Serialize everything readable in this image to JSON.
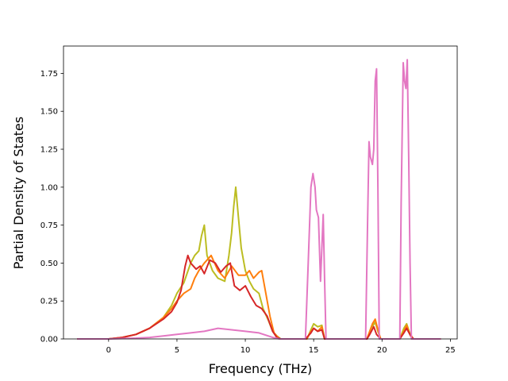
{
  "chart_data": {
    "type": "line",
    "xlabel": "Frequency (THz)",
    "ylabel": "Partial Density of States",
    "xlim": [
      -3.3,
      25.5
    ],
    "ylim": [
      0.0,
      1.93
    ],
    "x_ticks": [
      0,
      5,
      10,
      15,
      20,
      25
    ],
    "y_ticks": [
      0.0,
      0.25,
      0.5,
      0.75,
      1.0,
      1.25,
      1.5,
      1.75
    ],
    "x_tick_labels": [
      "0",
      "5",
      "10",
      "15",
      "20",
      "25"
    ],
    "y_tick_labels": [
      "0.00",
      "0.25",
      "0.50",
      "0.75",
      "1.00",
      "1.25",
      "1.50",
      "1.75"
    ],
    "grid": false,
    "legend": "none",
    "series": [
      {
        "color": "#bcbd22",
        "points": [
          [
            -2.3,
            0
          ],
          [
            0,
            0
          ],
          [
            1,
            0.01
          ],
          [
            2,
            0.03
          ],
          [
            3,
            0.07
          ],
          [
            4,
            0.14
          ],
          [
            4.6,
            0.22
          ],
          [
            5,
            0.3
          ],
          [
            5.5,
            0.37
          ],
          [
            6,
            0.5
          ],
          [
            6.3,
            0.55
          ],
          [
            6.6,
            0.58
          ],
          [
            6.8,
            0.68
          ],
          [
            7.0,
            0.75
          ],
          [
            7.2,
            0.55
          ],
          [
            7.6,
            0.45
          ],
          [
            8,
            0.4
          ],
          [
            8.5,
            0.38
          ],
          [
            8.8,
            0.55
          ],
          [
            9.0,
            0.7
          ],
          [
            9.15,
            0.87
          ],
          [
            9.3,
            1.0
          ],
          [
            9.5,
            0.8
          ],
          [
            9.7,
            0.6
          ],
          [
            10,
            0.45
          ],
          [
            10.3,
            0.38
          ],
          [
            10.6,
            0.33
          ],
          [
            11,
            0.3
          ],
          [
            11.3,
            0.2
          ],
          [
            11.7,
            0.12
          ],
          [
            12,
            0.05
          ],
          [
            12.3,
            0.02
          ],
          [
            12.6,
            0.0
          ],
          [
            14.5,
            0.0
          ],
          [
            14.8,
            0.06
          ],
          [
            15.0,
            0.1
          ],
          [
            15.3,
            0.08
          ],
          [
            15.6,
            0.09
          ],
          [
            15.8,
            0.0
          ],
          [
            18.9,
            0.0
          ],
          [
            19.2,
            0.07
          ],
          [
            19.5,
            0.11
          ],
          [
            19.7,
            0.05
          ],
          [
            19.9,
            0.0
          ],
          [
            21.3,
            0.0
          ],
          [
            21.6,
            0.07
          ],
          [
            21.8,
            0.1
          ],
          [
            22.1,
            0.02
          ],
          [
            22.3,
            0.0
          ],
          [
            24.3,
            0.0
          ]
        ]
      },
      {
        "color": "#ff7f0e",
        "points": [
          [
            -2.3,
            0
          ],
          [
            0,
            0
          ],
          [
            1,
            0.01
          ],
          [
            2,
            0.03
          ],
          [
            3,
            0.07
          ],
          [
            4,
            0.14
          ],
          [
            4.6,
            0.2
          ],
          [
            5,
            0.25
          ],
          [
            5.5,
            0.3
          ],
          [
            6,
            0.33
          ],
          [
            6.3,
            0.4
          ],
          [
            6.6,
            0.45
          ],
          [
            7,
            0.5
          ],
          [
            7.5,
            0.55
          ],
          [
            8,
            0.45
          ],
          [
            8.5,
            0.4
          ],
          [
            9,
            0.48
          ],
          [
            9.5,
            0.42
          ],
          [
            10,
            0.42
          ],
          [
            10.3,
            0.45
          ],
          [
            10.6,
            0.4
          ],
          [
            11,
            0.44
          ],
          [
            11.2,
            0.45
          ],
          [
            11.5,
            0.3
          ],
          [
            11.8,
            0.15
          ],
          [
            12.1,
            0.04
          ],
          [
            12.5,
            0.0
          ],
          [
            14.5,
            0.0
          ],
          [
            14.8,
            0.05
          ],
          [
            15.0,
            0.07
          ],
          [
            15.3,
            0.05
          ],
          [
            15.6,
            0.08
          ],
          [
            15.8,
            0.0
          ],
          [
            18.9,
            0.0
          ],
          [
            19.1,
            0.05
          ],
          [
            19.3,
            0.1
          ],
          [
            19.5,
            0.13
          ],
          [
            19.7,
            0.06
          ],
          [
            19.9,
            0.0
          ],
          [
            21.3,
            0.0
          ],
          [
            21.6,
            0.05
          ],
          [
            21.8,
            0.09
          ],
          [
            22.0,
            0.04
          ],
          [
            22.3,
            0.0
          ],
          [
            24.3,
            0.0
          ]
        ]
      },
      {
        "color": "#d62728",
        "points": [
          [
            -2.3,
            0
          ],
          [
            0,
            0
          ],
          [
            1,
            0.01
          ],
          [
            2,
            0.03
          ],
          [
            3,
            0.07
          ],
          [
            4,
            0.13
          ],
          [
            4.6,
            0.18
          ],
          [
            5,
            0.24
          ],
          [
            5.3,
            0.32
          ],
          [
            5.6,
            0.48
          ],
          [
            5.8,
            0.55
          ],
          [
            6,
            0.5
          ],
          [
            6.4,
            0.46
          ],
          [
            6.7,
            0.48
          ],
          [
            7,
            0.43
          ],
          [
            7.4,
            0.52
          ],
          [
            7.8,
            0.5
          ],
          [
            8.2,
            0.44
          ],
          [
            8.6,
            0.48
          ],
          [
            8.9,
            0.5
          ],
          [
            9.2,
            0.35
          ],
          [
            9.6,
            0.32
          ],
          [
            10,
            0.35
          ],
          [
            10.4,
            0.28
          ],
          [
            10.8,
            0.22
          ],
          [
            11.2,
            0.2
          ],
          [
            11.6,
            0.15
          ],
          [
            12,
            0.05
          ],
          [
            12.3,
            0.01
          ],
          [
            12.6,
            0.0
          ],
          [
            14.4,
            0.0
          ],
          [
            14.8,
            0.04
          ],
          [
            15.0,
            0.07
          ],
          [
            15.3,
            0.05
          ],
          [
            15.6,
            0.06
          ],
          [
            15.8,
            0.0
          ],
          [
            18.9,
            0.0
          ],
          [
            19.1,
            0.03
          ],
          [
            19.4,
            0.08
          ],
          [
            19.6,
            0.03
          ],
          [
            19.9,
            0.0
          ],
          [
            21.3,
            0.0
          ],
          [
            21.6,
            0.04
          ],
          [
            21.8,
            0.07
          ],
          [
            22.1,
            0.02
          ],
          [
            22.3,
            0.0
          ],
          [
            24.3,
            0.0
          ]
        ]
      },
      {
        "color": "#e377c2",
        "points": [
          [
            -2.3,
            0
          ],
          [
            0,
            0
          ],
          [
            2,
            0.005
          ],
          [
            3,
            0.01
          ],
          [
            4,
            0.02
          ],
          [
            5,
            0.03
          ],
          [
            6,
            0.04
          ],
          [
            7,
            0.05
          ],
          [
            8,
            0.07
          ],
          [
            9,
            0.06
          ],
          [
            10,
            0.05
          ],
          [
            11,
            0.04
          ],
          [
            12,
            0.01
          ],
          [
            12.5,
            0.0
          ],
          [
            14.4,
            0.0
          ],
          [
            14.6,
            0.5
          ],
          [
            14.8,
            1.0
          ],
          [
            14.95,
            1.09
          ],
          [
            15.1,
            1.0
          ],
          [
            15.2,
            0.85
          ],
          [
            15.35,
            0.8
          ],
          [
            15.5,
            0.38
          ],
          [
            15.6,
            0.6
          ],
          [
            15.7,
            0.82
          ],
          [
            15.8,
            0.4
          ],
          [
            15.9,
            0.0
          ],
          [
            18.8,
            0.0
          ],
          [
            18.95,
            0.8
          ],
          [
            19.05,
            1.3
          ],
          [
            19.15,
            1.2
          ],
          [
            19.3,
            1.15
          ],
          [
            19.4,
            1.25
          ],
          [
            19.5,
            1.7
          ],
          [
            19.6,
            1.78
          ],
          [
            19.7,
            1.0
          ],
          [
            19.8,
            0.0
          ],
          [
            21.3,
            0.0
          ],
          [
            21.4,
            0.9
          ],
          [
            21.55,
            1.82
          ],
          [
            21.65,
            1.7
          ],
          [
            21.75,
            1.65
          ],
          [
            21.85,
            1.84
          ],
          [
            21.95,
            1.2
          ],
          [
            22.05,
            0.5
          ],
          [
            22.15,
            0.0
          ],
          [
            24.3,
            0.0
          ]
        ]
      }
    ]
  }
}
